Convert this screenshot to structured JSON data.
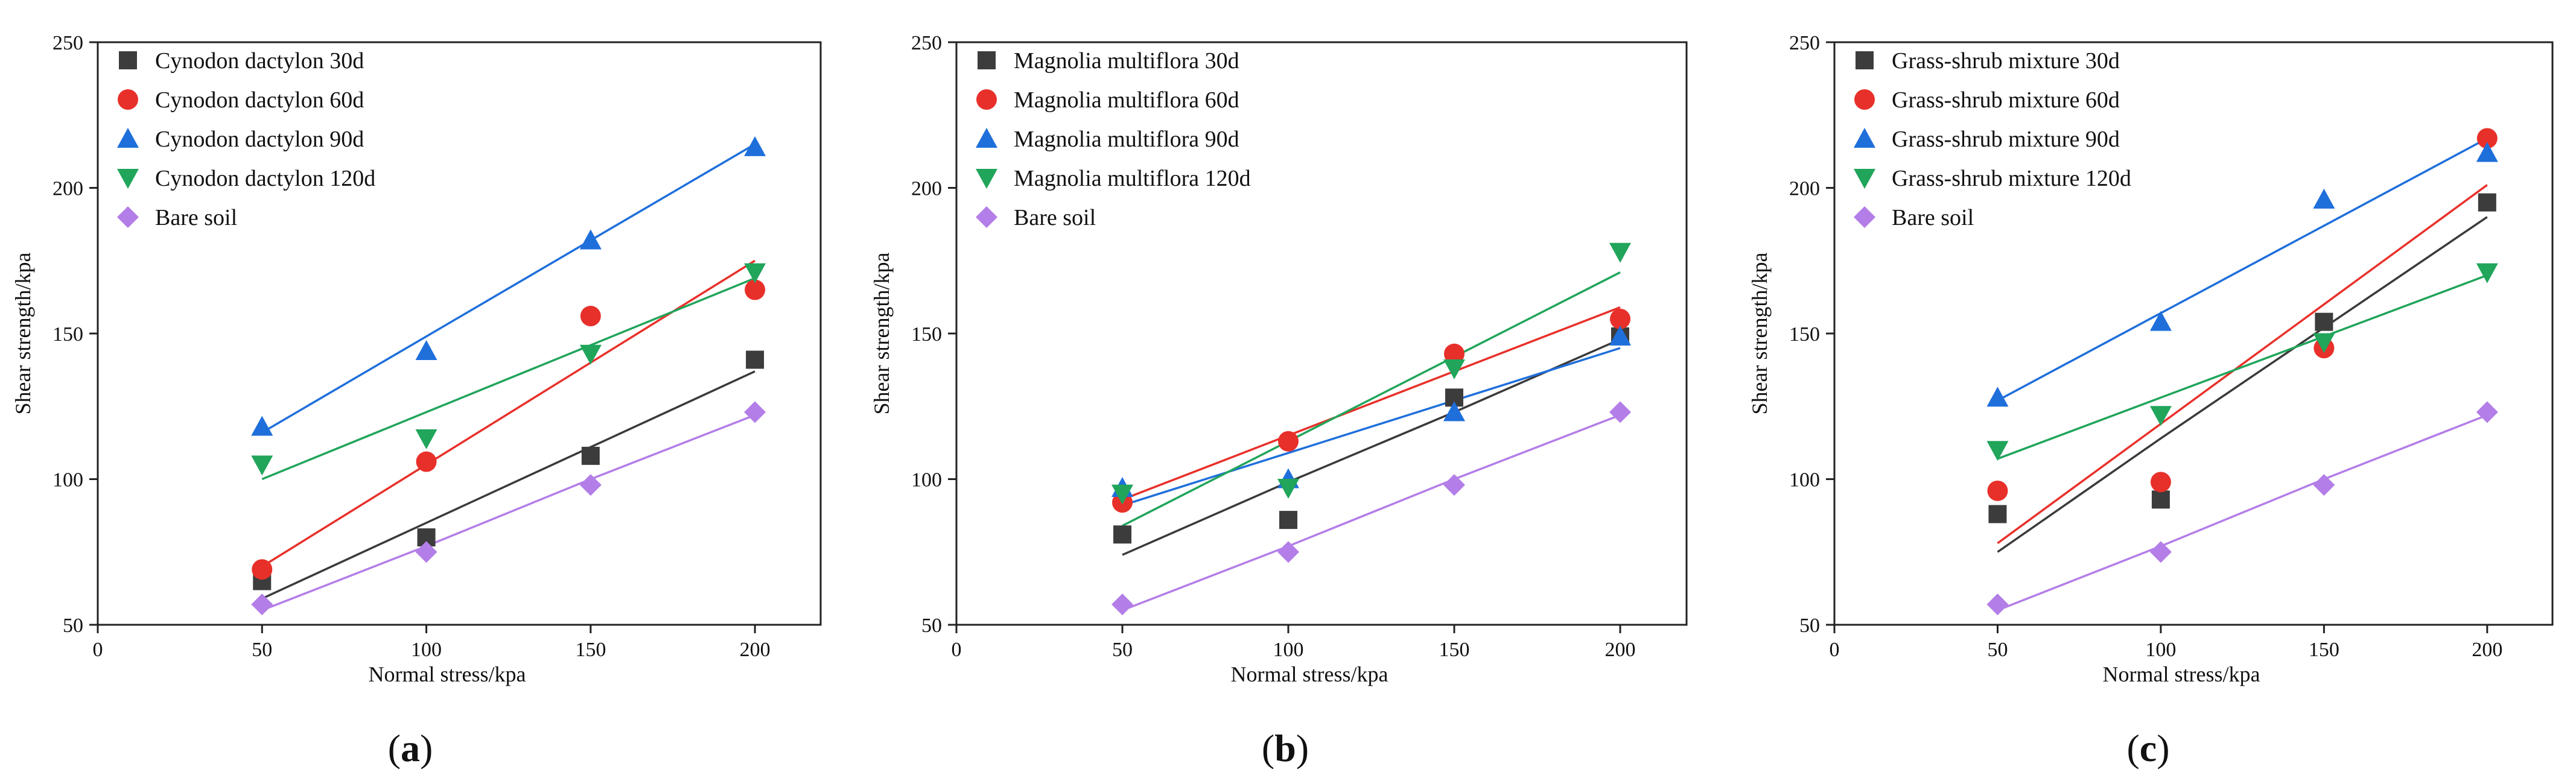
{
  "colors": {
    "series": [
      "#3c3c3c",
      "#e8302a",
      "#1f6fdb",
      "#21a55b",
      "#b37ee8"
    ],
    "fit": [
      "#3a3a3a",
      "#e8302a",
      "#1f6fdb",
      "#21a55b",
      "#b37ee8"
    ]
  },
  "chart_data": [
    {
      "type": "scatter",
      "panel_label": "(a)",
      "panel_letter": "a",
      "xlabel": "Normal stress/kpa",
      "ylabel": "Shear strength/kpa",
      "xlim": [
        0,
        220
      ],
      "ylim": [
        50,
        250
      ],
      "xticks": [
        0,
        50,
        100,
        150,
        200
      ],
      "yticks": [
        50,
        100,
        150,
        200,
        250
      ],
      "x": [
        50,
        100,
        150,
        200
      ],
      "legend_position": "top-left",
      "series": [
        {
          "name": "Cynodon dactylon 30d",
          "marker": "square",
          "values": [
            65,
            80,
            108,
            141
          ],
          "fit": [
            59,
            85,
            111,
            137
          ]
        },
        {
          "name": "Cynodon dactylon 60d",
          "marker": "circle",
          "values": [
            69,
            106,
            156,
            165
          ],
          "fit": [
            70,
            105,
            140,
            175
          ]
        },
        {
          "name": "Cynodon dactylon 90d",
          "marker": "triangle-up",
          "values": [
            118,
            144,
            182,
            214
          ],
          "fit": [
            116,
            149,
            182,
            215
          ]
        },
        {
          "name": "Cynodon dactylon 120d",
          "marker": "triangle-down",
          "values": [
            105,
            114,
            143,
            171
          ],
          "fit": [
            100,
            123,
            146,
            169
          ]
        },
        {
          "name": "Bare soil",
          "marker": "diamond",
          "values": [
            57,
            75,
            98,
            123
          ],
          "fit": [
            55,
            77,
            100,
            122
          ]
        }
      ]
    },
    {
      "type": "scatter",
      "panel_label": "(b)",
      "panel_letter": "b",
      "xlabel": "Normal stress/kpa",
      "ylabel": "Shear strength/kpa",
      "xlim": [
        0,
        220
      ],
      "ylim": [
        50,
        250
      ],
      "xticks": [
        0,
        50,
        100,
        150,
        200
      ],
      "yticks": [
        50,
        100,
        150,
        200,
        250
      ],
      "x": [
        50,
        100,
        150,
        200
      ],
      "legend_position": "top-left",
      "series": [
        {
          "name": "Magnolia multiflora 30d",
          "marker": "square",
          "values": [
            81,
            86,
            128,
            149
          ],
          "fit": [
            74,
            99,
            123,
            148
          ]
        },
        {
          "name": "Magnolia multiflora 60d",
          "marker": "circle",
          "values": [
            92,
            113,
            143,
            155
          ],
          "fit": [
            93,
            115,
            137,
            159
          ]
        },
        {
          "name": "Magnolia multiflora 90d",
          "marker": "triangle-up",
          "values": [
            97,
            100,
            123,
            149
          ],
          "fit": [
            91,
            109,
            127,
            145
          ]
        },
        {
          "name": "Magnolia multiflora 120d",
          "marker": "triangle-down",
          "values": [
            95,
            97,
            138,
            178
          ],
          "fit": [
            84,
            113,
            142,
            171
          ]
        },
        {
          "name": "Bare soil",
          "marker": "diamond",
          "values": [
            57,
            75,
            98,
            123
          ],
          "fit": [
            55,
            77,
            100,
            122
          ]
        }
      ]
    },
    {
      "type": "scatter",
      "panel_label": "(c)",
      "panel_letter": "c",
      "xlabel": "Normal stress/kpa",
      "ylabel": "Shear strength/kpa",
      "xlim": [
        0,
        220
      ],
      "ylim": [
        50,
        250
      ],
      "xticks": [
        0,
        50,
        100,
        150,
        200
      ],
      "yticks": [
        50,
        100,
        150,
        200,
        250
      ],
      "x": [
        50,
        100,
        150,
        200
      ],
      "legend_position": "top-left",
      "series": [
        {
          "name": "Grass-shrub mixture 30d",
          "marker": "square",
          "values": [
            88,
            93,
            154,
            195
          ],
          "fit": [
            75,
            114,
            152,
            190
          ]
        },
        {
          "name": "Grass-shrub mixture 60d",
          "marker": "circle",
          "values": [
            96,
            99,
            145,
            217
          ],
          "fit": [
            78,
            119,
            160,
            201
          ]
        },
        {
          "name": "Grass-shrub mixture 90d",
          "marker": "triangle-up",
          "values": [
            128,
            154,
            196,
            212
          ],
          "fit": [
            127,
            157,
            187,
            217
          ]
        },
        {
          "name": "Grass-shrub mixture 120d",
          "marker": "triangle-down",
          "values": [
            110,
            122,
            147,
            171
          ],
          "fit": [
            107,
            128,
            149,
            170
          ]
        },
        {
          "name": "Bare soil",
          "marker": "diamond",
          "values": [
            57,
            75,
            98,
            123
          ],
          "fit": [
            55,
            77,
            100,
            122
          ]
        }
      ]
    }
  ]
}
